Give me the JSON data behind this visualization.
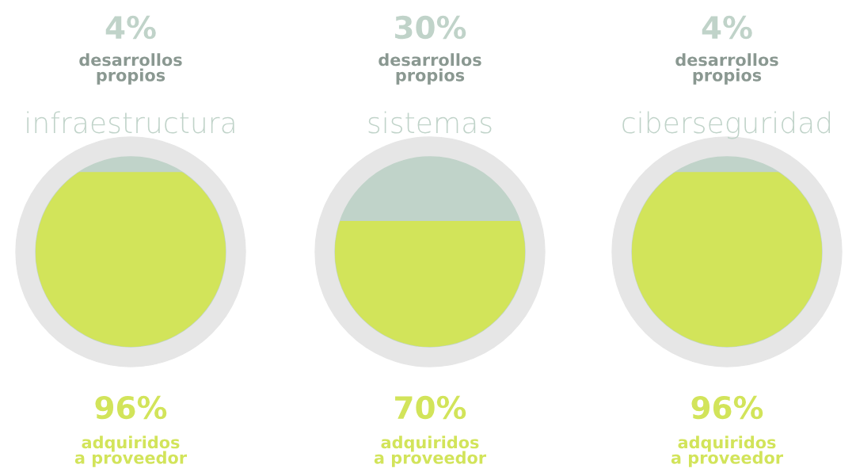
{
  "chart_data": [
    {
      "type": "other",
      "title": "infraestructura",
      "categories": [
        "desarrollos propios",
        "adquiridos a proveedor"
      ],
      "values": [
        4,
        96
      ],
      "value_labels": [
        "4%",
        "96%"
      ],
      "colors": [
        "#c0d3c9",
        "#d2e45a"
      ]
    },
    {
      "type": "other",
      "title": "sistemas",
      "categories": [
        "desarrollos propios",
        "adquiridos a proveedor"
      ],
      "values": [
        30,
        70
      ],
      "value_labels": [
        "30%",
        "70%"
      ],
      "colors": [
        "#c0d3c9",
        "#d2e45a"
      ]
    },
    {
      "type": "other",
      "title": "ciberseguridad",
      "categories": [
        "desarrollos propios",
        "adquiridos a proveedor"
      ],
      "values": [
        4,
        96
      ],
      "value_labels": [
        "4%",
        "96%"
      ],
      "colors": [
        "#c0d3c9",
        "#d2e45a"
      ]
    }
  ]
}
